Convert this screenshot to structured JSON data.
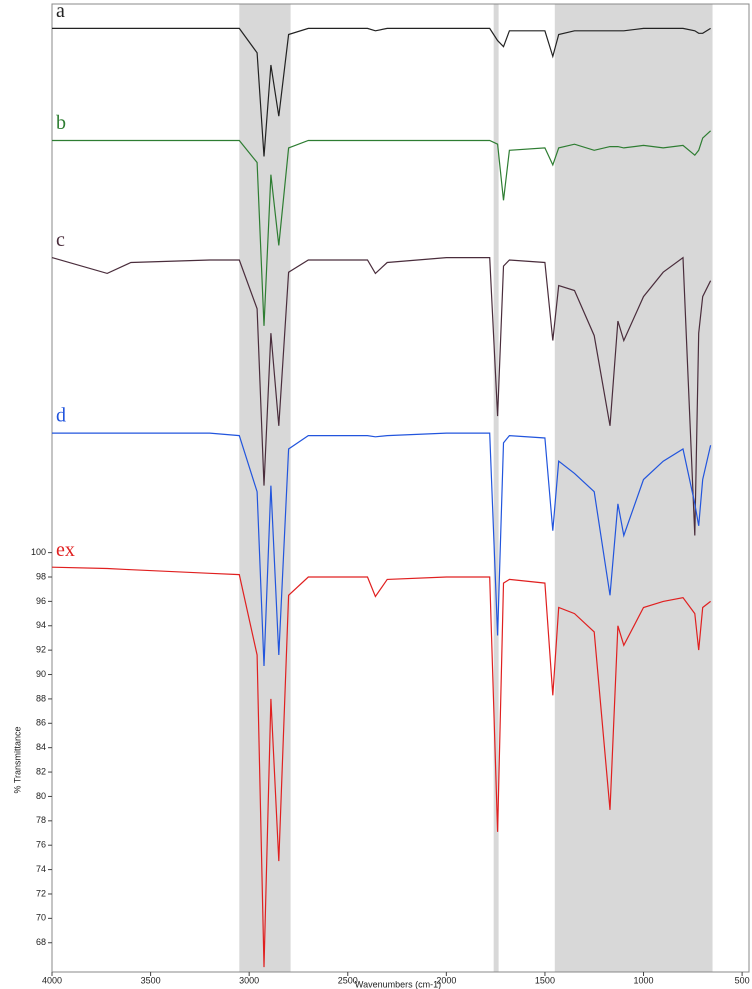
{
  "chart_data": {
    "type": "line",
    "xlabel": "Wavenumbers (cm-1)",
    "ylabel": "% Transmittance",
    "x": [
      4000,
      3720,
      3600,
      3200,
      3050,
      2960,
      2925,
      2890,
      2850,
      2800,
      2700,
      2400,
      2360,
      2300,
      2000,
      1780,
      1740,
      1710,
      1680,
      1500,
      1460,
      1430,
      1350,
      1250,
      1170,
      1130,
      1100,
      1000,
      900,
      800,
      740,
      720,
      700,
      660
    ],
    "series": [
      {
        "name": "a",
        "color": "#222222",
        "values": [
          143,
          143,
          143,
          143,
          143,
          141,
          132.5,
          140,
          135.8,
          142.5,
          143,
          143,
          142.8,
          143,
          143,
          143,
          142,
          141.5,
          142.8,
          142.8,
          140.7,
          142.5,
          142.8,
          142.8,
          142.8,
          142.8,
          142.8,
          143,
          143,
          143,
          142.8,
          142.6,
          142.6,
          143
        ]
      },
      {
        "name": "b",
        "color": "#2e7d32",
        "values": [
          133.8,
          133.8,
          133.8,
          133.8,
          133.8,
          132,
          118.6,
          131,
          125.2,
          133.2,
          133.8,
          133.8,
          133.8,
          133.8,
          133.8,
          133.8,
          133.5,
          128.9,
          133,
          133.2,
          131.8,
          133.2,
          133.5,
          133,
          133.3,
          133.3,
          133.2,
          133.4,
          133.2,
          133.4,
          132.6,
          133,
          134,
          134.6
        ]
      },
      {
        "name": "c",
        "color": "#4a2d3c",
        "values": [
          124.2,
          122.9,
          123.8,
          124,
          124,
          120,
          105.5,
          118,
          110.4,
          123,
          124,
          124,
          122.9,
          123.8,
          124.2,
          124.2,
          111.2,
          123.5,
          124,
          123.8,
          117.4,
          121.9,
          121.5,
          117.8,
          110.4,
          119,
          117.4,
          121,
          123,
          124.2,
          101.4,
          118,
          121,
          122.3
        ]
      },
      {
        "name": "d",
        "color": "#2255dd",
        "values": [
          109.8,
          109.8,
          109.8,
          109.8,
          109.6,
          105,
          90.7,
          105.5,
          91.6,
          108.5,
          109.6,
          109.6,
          109.5,
          109.6,
          109.8,
          109.8,
          93.2,
          109,
          109.6,
          109.4,
          101.8,
          107.5,
          106.5,
          105,
          96.5,
          104,
          101.4,
          106,
          107.5,
          108.5,
          104,
          102.2,
          106,
          108.8
        ]
      },
      {
        "name": "ex",
        "color": "#e02020",
        "values": [
          98.8,
          98.7,
          98.6,
          98.3,
          98.2,
          91.6,
          66,
          88,
          74.7,
          96.5,
          98,
          98,
          96.4,
          97.8,
          98,
          98,
          77.1,
          97.5,
          97.8,
          97.5,
          88.3,
          95.5,
          95,
          93.5,
          78.9,
          94,
          92.4,
          95.5,
          96,
          96.3,
          95,
          92,
          95.5,
          96
        ]
      }
    ],
    "xlim": [
      4000,
      460
    ],
    "xticks": [
      4000,
      3500,
      3000,
      2500,
      2000,
      1500,
      1000,
      500
    ],
    "ylim": [
      65.6,
      145
    ],
    "yticks": [
      68,
      70,
      72,
      74,
      76,
      78,
      80,
      82,
      84,
      86,
      88,
      90,
      92,
      94,
      96,
      98,
      100
    ],
    "shaded_regions": [
      [
        3050,
        2790
      ],
      [
        1760,
        1735
      ],
      [
        1450,
        650
      ]
    ],
    "shade_color": "#c8c8c8"
  }
}
